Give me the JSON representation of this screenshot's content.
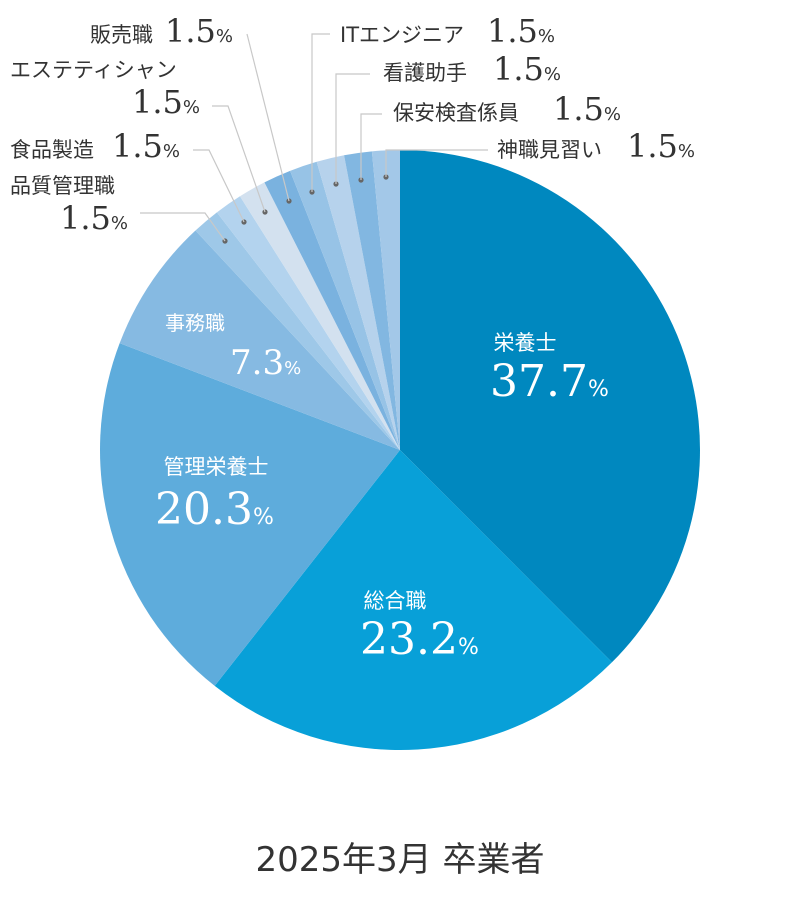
{
  "caption": "2025年3月 卒業者",
  "chart_data": {
    "type": "pie",
    "start_angle_deg": 0,
    "direction": "clockwise",
    "slices": [
      {
        "label": "栄養士",
        "value": 37.7,
        "value_text": "37.7",
        "unit": "%",
        "color": "#0088bf"
      },
      {
        "label": "総合職",
        "value": 23.2,
        "value_text": "23.2",
        "unit": "%",
        "color": "#08a0d8"
      },
      {
        "label": "管理栄養士",
        "value": 20.3,
        "value_text": "20.3",
        "unit": "%",
        "color": "#5eacdc"
      },
      {
        "label": "事務職",
        "value": 7.3,
        "value_text": "7.3",
        "unit": "%",
        "color": "#86bae2"
      },
      {
        "label": "品質管理職",
        "value": 1.5,
        "value_text": "1.5",
        "unit": "%",
        "color": "#9ec8e8"
      },
      {
        "label": "食品製造",
        "value": 1.5,
        "value_text": "1.5",
        "unit": "%",
        "color": "#b3d3ee"
      },
      {
        "label": "エステティシャン",
        "value": 1.5,
        "value_text": "1.5",
        "unit": "%",
        "color": "#d3e1ef"
      },
      {
        "label": "販売職",
        "value": 1.5,
        "value_text": "1.5",
        "unit": "%",
        "color": "#7ab2df"
      },
      {
        "label": "ITエンジニア",
        "value": 1.5,
        "value_text": "1.5",
        "unit": "%",
        "color": "#97c3e6"
      },
      {
        "label": "看護助手",
        "value": 1.5,
        "value_text": "1.5",
        "unit": "%",
        "color": "#b6d2ec"
      },
      {
        "label": "保安検査係員",
        "value": 1.5,
        "value_text": "1.5",
        "unit": "%",
        "color": "#82b7e1"
      },
      {
        "label": "神職見習い",
        "value": 1.5,
        "value_text": "1.5",
        "unit": "%",
        "color": "#a3c8e8"
      }
    ]
  }
}
